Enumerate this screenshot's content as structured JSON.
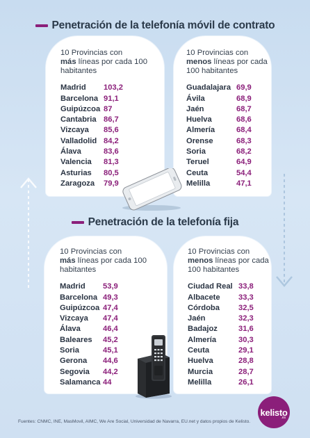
{
  "mobile": {
    "title": "Penetración de la telefonía móvil de contrato",
    "most": {
      "intro_pre": "10 Provincias con",
      "intro_bold": "más",
      "intro_post": "líneas por cada 100 habitantes",
      "rows": [
        {
          "name": "Madrid",
          "value": "103,2"
        },
        {
          "name": "Barcelona",
          "value": "91,1"
        },
        {
          "name": "Guipúzcoa",
          "value": "87"
        },
        {
          "name": "Cantabria",
          "value": "86,7"
        },
        {
          "name": "Vizcaya",
          "value": "85,6"
        },
        {
          "name": "Valladolid",
          "value": "84,2"
        },
        {
          "name": "Álava",
          "value": "83,6"
        },
        {
          "name": "Valencia",
          "value": "81,3"
        },
        {
          "name": "Asturias",
          "value": "80,5"
        },
        {
          "name": "Zaragoza",
          "value": "79,9"
        }
      ]
    },
    "least": {
      "intro_pre": "10 Provincias con",
      "intro_bold": "menos",
      "intro_post": "líneas por cada 100 habitantes",
      "rows": [
        {
          "name": "Guadalajara",
          "value": "69,9"
        },
        {
          "name": "Ávila",
          "value": "68,9"
        },
        {
          "name": "Jaén",
          "value": "68,7"
        },
        {
          "name": "Huelva",
          "value": "68,6"
        },
        {
          "name": "Almería",
          "value": "68,4"
        },
        {
          "name": "Orense",
          "value": "68,3"
        },
        {
          "name": "Soria",
          "value": "68,2"
        },
        {
          "name": "Teruel",
          "value": "64,9"
        },
        {
          "name": "Ceuta",
          "value": "54,4"
        },
        {
          "name": "Melilla",
          "value": "47,1"
        }
      ]
    }
  },
  "fixed": {
    "title": "Penetración de la telefonía fija",
    "most": {
      "intro_pre": "10 Provincias con",
      "intro_bold": "más",
      "intro_post": "líneas por cada 100 habitantes",
      "rows": [
        {
          "name": "Madrid",
          "value": "53,9"
        },
        {
          "name": "Barcelona",
          "value": "49,3"
        },
        {
          "name": "Guipúzcoa",
          "value": "47,4"
        },
        {
          "name": "Vizcaya",
          "value": "47,4"
        },
        {
          "name": "Álava",
          "value": "46,4"
        },
        {
          "name": "Baleares",
          "value": "45,2"
        },
        {
          "name": "Soria",
          "value": "45,1"
        },
        {
          "name": "Gerona",
          "value": "44,6"
        },
        {
          "name": "Segovia",
          "value": "44,2"
        },
        {
          "name": "Salamanca",
          "value": "44"
        }
      ]
    },
    "least": {
      "intro_pre": "10 Provincias con",
      "intro_bold": "menos",
      "intro_post": "líneas por cada 100 habitantes",
      "rows": [
        {
          "name": "Ciudad Real",
          "value": "33,8"
        },
        {
          "name": "Albacete",
          "value": "33,3"
        },
        {
          "name": "Córdoba",
          "value": "32,5"
        },
        {
          "name": "Jaén",
          "value": "32,3"
        },
        {
          "name": "Badajoz",
          "value": "31,6"
        },
        {
          "name": "Almería",
          "value": "30,3"
        },
        {
          "name": "Ceuta",
          "value": "29,1"
        },
        {
          "name": "Huelva",
          "value": "28,8"
        },
        {
          "name": "Murcia",
          "value": "28,7"
        },
        {
          "name": "Melilla",
          "value": "26,1"
        }
      ]
    }
  },
  "footer": "Fuentes: CNMC, INE, MasMovil, AIMC, We Are Social, Universidad de Navarra, EU.net y datos propios de Kelisto.",
  "brand": {
    "name": "kelisto",
    "suffix": ".es",
    "color": "#8b1f7a"
  },
  "icons": [
    "smartphone-icon",
    "desk-phone-icon",
    "arrow-up-icon",
    "arrow-down-icon"
  ]
}
